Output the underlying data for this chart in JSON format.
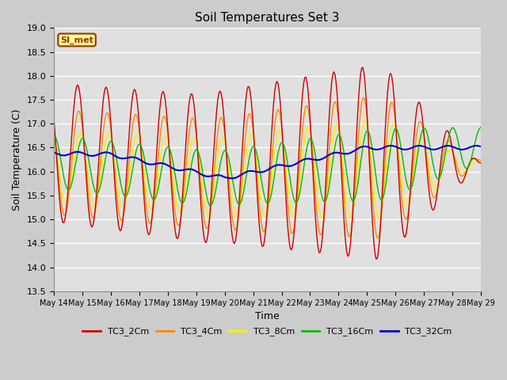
{
  "title": "Soil Temperatures Set 3",
  "xlabel": "Time",
  "ylabel": "Soil Temperature (C)",
  "ylim": [
    13.5,
    19.0
  ],
  "yticks": [
    13.5,
    14.0,
    14.5,
    15.0,
    15.5,
    16.0,
    16.5,
    17.0,
    17.5,
    18.0,
    18.5,
    19.0
  ],
  "xtick_labels": [
    "May 14",
    "May 15",
    "May 16",
    "May 17",
    "May 18",
    "May 19",
    "May 20",
    "May 21",
    "May 22",
    "May 23",
    "May 24",
    "May 25",
    "May 26",
    "May 27",
    "May 28",
    "May 29"
  ],
  "line_colors": {
    "TC3_2Cm": "#cc0000",
    "TC3_4Cm": "#ff8800",
    "TC3_8Cm": "#ffee00",
    "TC3_16Cm": "#00bb00",
    "TC3_32Cm": "#0000cc"
  },
  "annotation_text": "SI_met",
  "annotation_bg": "#ffff99",
  "annotation_border": "#993300",
  "figsize": [
    6.4,
    4.8
  ],
  "dpi": 100
}
